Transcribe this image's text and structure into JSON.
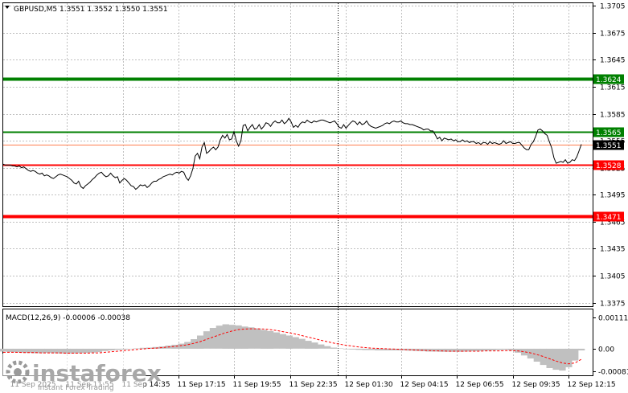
{
  "chart_data": [
    {
      "type": "line",
      "title": "GBPUSD,M5  1.3551 1.3552 1.3550 1.3551",
      "symbol": "GBPUSD,M5",
      "ohlc": [
        "1.3551",
        "1.3552",
        "1.3550",
        "1.3551"
      ],
      "x_labels": [
        "11 Sep 2025",
        "11 Sep 11:55",
        "11 Sep 14:35",
        "11 Sep 17:15",
        "11 Sep 19:55",
        "11 Sep 22:35",
        "12 Sep 01:30",
        "12 Sep 04:15",
        "12 Sep 06:55",
        "12 Sep 09:35",
        "12 Sep 12:15"
      ],
      "y_tick_labels": [
        "1.3705",
        "1.3675",
        "1.3645",
        "1.3615",
        "1.3585",
        "1.3555",
        "1.3525",
        "1.3495",
        "1.3465",
        "1.3435",
        "1.3405",
        "1.3375"
      ],
      "ylim": [
        1.3371,
        1.3708
      ],
      "grid": true,
      "series": [
        {
          "values": [
            1.3529,
            1.3528,
            1.3528,
            1.3528,
            1.3527,
            1.3527,
            1.3526,
            1.3527,
            1.3525,
            1.3526,
            1.3524,
            1.3522,
            1.3521,
            1.3522,
            1.3521,
            1.3519,
            1.3518,
            1.3519,
            1.3516,
            1.3517,
            1.3516,
            1.3514,
            1.3513,
            1.3515,
            1.3517,
            1.3518,
            1.3517,
            1.3516,
            1.3515,
            1.3513,
            1.3511,
            1.3508,
            1.3507,
            1.351,
            1.3504,
            1.3502,
            1.3505,
            1.3507,
            1.3509,
            1.3512,
            1.3514,
            1.3517,
            1.3519,
            1.352,
            1.3517,
            1.3515,
            1.3516,
            1.3519,
            1.3516,
            1.3514,
            1.3515,
            1.3508,
            1.3511,
            1.3513,
            1.3511,
            1.3508,
            1.3505,
            1.3504,
            1.3501,
            1.3503,
            1.3506,
            1.3505,
            1.3506,
            1.3503,
            1.3505,
            1.3508,
            1.351,
            1.351,
            1.3512,
            1.3513,
            1.3515,
            1.3516,
            1.3517,
            1.3518,
            1.3517,
            1.3519,
            1.352,
            1.3519,
            1.3521,
            1.352,
            1.3514,
            1.3511,
            1.3516,
            1.3524,
            1.3538,
            1.3541,
            1.3535,
            1.3548,
            1.3553,
            1.3541,
            1.3543,
            1.3546,
            1.3548,
            1.3545,
            1.3548,
            1.3556,
            1.3561,
            1.3558,
            1.3562,
            1.3556,
            1.3557,
            1.3565,
            1.3555,
            1.3549,
            1.3555,
            1.3572,
            1.3573,
            1.3566,
            1.357,
            1.3573,
            1.3568,
            1.3569,
            1.3573,
            1.3568,
            1.3571,
            1.3575,
            1.3574,
            1.3571,
            1.3575,
            1.3577,
            1.3575,
            1.3575,
            1.3578,
            1.3574,
            1.3576,
            1.358,
            1.3576,
            1.357,
            1.3572,
            1.357,
            1.3574,
            1.3576,
            1.3575,
            1.3578,
            1.3576,
            1.3575,
            1.3577,
            1.3576,
            1.3577,
            1.3578,
            1.3578,
            1.3577,
            1.3576,
            1.3575,
            1.3576,
            1.3577,
            1.3574,
            1.357,
            1.3569,
            1.3573,
            1.3569,
            1.3572,
            1.3575,
            1.3577,
            1.3576,
            1.3573,
            1.3576,
            1.3573,
            1.3574,
            1.3577,
            1.3573,
            1.3571,
            1.357,
            1.3569,
            1.357,
            1.3571,
            1.3572,
            1.3574,
            1.3575,
            1.3574,
            1.3576,
            1.3577,
            1.3576,
            1.3576,
            1.3577,
            1.3575,
            1.3574,
            1.3574,
            1.3573,
            1.3573,
            1.3572,
            1.3571,
            1.357,
            1.3569,
            1.3567,
            1.3568,
            1.3568,
            1.3566,
            1.3566,
            1.3562,
            1.3557,
            1.3559,
            1.3555,
            1.3558,
            1.3557,
            1.3556,
            1.3557,
            1.3555,
            1.3556,
            1.3554,
            1.3554,
            1.3556,
            1.3554,
            1.3555,
            1.3553,
            1.3554,
            1.3554,
            1.3552,
            1.3553,
            1.3551,
            1.3553,
            1.3553,
            1.3551,
            1.3554,
            1.3552,
            1.3553,
            1.3552,
            1.3551,
            1.3552,
            1.3555,
            1.3552,
            1.3553,
            1.3554,
            1.3552,
            1.3552,
            1.3553,
            1.3553,
            1.355,
            1.3547,
            1.3545,
            1.3545,
            1.3551,
            1.3554,
            1.356,
            1.3567,
            1.3568,
            1.3566,
            1.3563,
            1.3561,
            1.3554,
            1.3547,
            1.3536,
            1.353,
            1.3531,
            1.3532,
            1.3531,
            1.3534,
            1.353,
            1.3531,
            1.3534,
            1.3533,
            1.3537,
            1.3544,
            1.3551
          ]
        }
      ],
      "level_lines": [
        {
          "price": 1.3624,
          "label": "1.3624",
          "color": "#008000"
        },
        {
          "price": 1.3565,
          "label": "1.3565",
          "color": "#008000"
        },
        {
          "price": 1.3551,
          "label": "1.3551",
          "color": "#000000"
        },
        {
          "price": 1.3528,
          "label": "1.3528",
          "color": "#ff0000"
        },
        {
          "price": 1.3471,
          "label": "1.3471",
          "color": "#ff0000"
        }
      ],
      "colors": {
        "price_line": "#000000",
        "green_level": "#008000",
        "red_level": "#ff0000",
        "bid_line": "#ff7f50",
        "grid": "#c0c0c0"
      }
    },
    {
      "type": "bar",
      "title": "MACD(12,26,9) -0.00006 -0.00038",
      "y_tick_labels": [
        "0.00111",
        "0.00",
        "-0.00081"
      ],
      "ylim": [
        -0.00095,
        0.0014
      ],
      "series": [
        {
          "name": "MACD",
          "values": [
            -0.0001,
            -0.00012,
            -0.00013,
            -0.00014,
            -0.00015,
            -0.00016,
            -0.00016,
            -0.00015,
            -0.00016,
            -0.00017,
            -0.00018,
            -0.00017,
            -0.00016,
            -0.00015,
            -0.00014,
            -0.00012,
            -8e-05,
            -6e-05,
            -4e-05,
            -3e-05,
            -1e-05,
            1e-05,
            3e-05,
            4e-05,
            6e-05,
            8e-05,
            0.00011,
            0.00014,
            0.00018,
            0.00024,
            0.00034,
            0.00047,
            0.00062,
            0.00074,
            0.00082,
            0.00087,
            0.00085,
            0.00083,
            0.00079,
            0.00076,
            0.00072,
            0.00067,
            0.00063,
            0.00058,
            0.00052,
            0.00047,
            0.00041,
            0.00035,
            0.00028,
            0.00022,
            0.00015,
            9e-05,
            4e-05,
            1e-05,
            -2e-05,
            -3e-05,
            -4e-05,
            -5e-05,
            -5e-05,
            -6e-05,
            -6e-05,
            -6e-05,
            -6e-05,
            -6e-05,
            -7e-05,
            -8e-05,
            -9e-05,
            -0.0001,
            -0.0001,
            -0.00011,
            -0.00011,
            -0.00011,
            -0.00011,
            -0.0001,
            -9e-05,
            -8e-05,
            -7e-05,
            -6e-05,
            -5e-05,
            -4e-05,
            -6e-05,
            -0.00014,
            -0.00024,
            -0.00035,
            -0.00046,
            -0.00058,
            -0.00069,
            -0.00075,
            -0.00078,
            -0.00066,
            -0.00042,
            -6e-05
          ]
        },
        {
          "name": "Signal",
          "values": [
            -0.00013,
            -0.00013,
            -0.00013,
            -0.00014,
            -0.00014,
            -0.00014,
            -0.00015,
            -0.00015,
            -0.00015,
            -0.00015,
            -0.00016,
            -0.00016,
            -0.00016,
            -0.00016,
            -0.00015,
            -0.00015,
            -0.00013,
            -0.00011,
            -9e-05,
            -7e-05,
            -5e-05,
            -3e-05,
            -1e-05,
            1e-05,
            2e-05,
            4e-05,
            6e-05,
            8e-05,
            0.00011,
            0.00014,
            0.00019,
            0.00025,
            0.00033,
            0.00041,
            0.00049,
            0.00057,
            0.00063,
            0.00068,
            0.0007,
            0.00071,
            0.00071,
            0.0007,
            0.00068,
            0.00065,
            0.00061,
            0.00057,
            0.00052,
            0.00047,
            0.00041,
            0.00036,
            0.0003,
            0.00025,
            0.0002,
            0.00016,
            0.00012,
            9e-05,
            6e-05,
            4e-05,
            2e-05,
            1e-05,
            0.0,
            -1e-05,
            -2e-05,
            -3e-05,
            -4e-05,
            -5e-05,
            -6e-05,
            -7e-05,
            -8e-05,
            -8e-05,
            -9e-05,
            -9e-05,
            -9e-05,
            -9e-05,
            -9e-05,
            -9e-05,
            -8e-05,
            -8e-05,
            -8e-05,
            -7e-05,
            -7e-05,
            -8e-05,
            -0.00011,
            -0.00015,
            -0.00021,
            -0.00028,
            -0.00036,
            -0.00044,
            -0.00051,
            -0.00054,
            -0.00051,
            -0.00038
          ]
        }
      ],
      "colors": {
        "histogram": "#c0c0c0",
        "signal": "#ff0000"
      }
    }
  ],
  "watermark": {
    "brand": "instaforex",
    "tagline": "Instant Forex Trading"
  }
}
